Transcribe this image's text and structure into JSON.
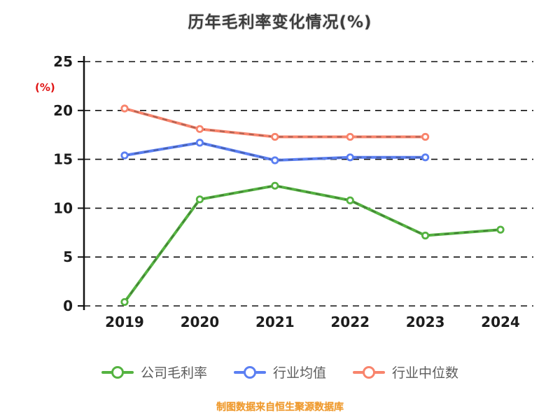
{
  "title": "历年毛利率变化情况(%)",
  "y_axis_unit": "(%)",
  "footer": "制图数据来自恒生聚源数据库",
  "chart_data": {
    "type": "line",
    "title": "历年毛利率变化情况(%)",
    "categories": [
      "2019",
      "2020",
      "2021",
      "2022",
      "2023",
      "2024"
    ],
    "series": [
      {
        "name": "公司毛利率",
        "color": "#55b341",
        "values": [
          0.4,
          10.9,
          12.3,
          10.8,
          7.2,
          7.8
        ]
      },
      {
        "name": "行业均值",
        "color": "#5b7ff2",
        "values": [
          15.4,
          16.7,
          14.9,
          15.2,
          15.2,
          null
        ]
      },
      {
        "name": "行业中位数",
        "color": "#f8846c",
        "values": [
          20.2,
          18.1,
          17.3,
          17.3,
          17.3,
          null
        ]
      }
    ],
    "ylabel": "(%)",
    "ylim": [
      0,
      25
    ],
    "yticks": [
      0,
      5,
      10,
      15,
      20,
      25
    ],
    "grid": "horizontal-dashed",
    "legend_position": "bottom",
    "source_note": "制图数据来自恒生聚源数据库"
  }
}
